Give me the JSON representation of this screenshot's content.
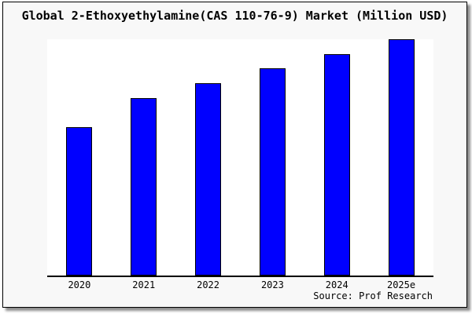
{
  "title": "Global 2-Ethoxyethylamine(CAS 110-76-9) Market (Million USD)",
  "source": "Source: Prof Research",
  "colors": {
    "bar": "#0000ff",
    "bar_border": "#000000",
    "axis": "#000000",
    "frame_background": "#f8f8f8",
    "plot_background": "#ffffff"
  },
  "chart_data": {
    "type": "bar",
    "title": "Global 2-Ethoxyethylamine(CAS 110-76-9) Market (Million USD)",
    "categories": [
      "2020",
      "2021",
      "2022",
      "2023",
      "2024",
      "2025e"
    ],
    "values": [
      62.8,
      75.1,
      81.4,
      87.7,
      93.7,
      100.0
    ],
    "xlabel": "",
    "ylabel": "",
    "ylim": [
      0,
      100
    ],
    "grid": false,
    "legend": null,
    "note": "No y-axis scale is shown in the image; values are relative bar heights indexed to 2025e = 100.",
    "annotations": [
      "Source: Prof Research"
    ]
  }
}
